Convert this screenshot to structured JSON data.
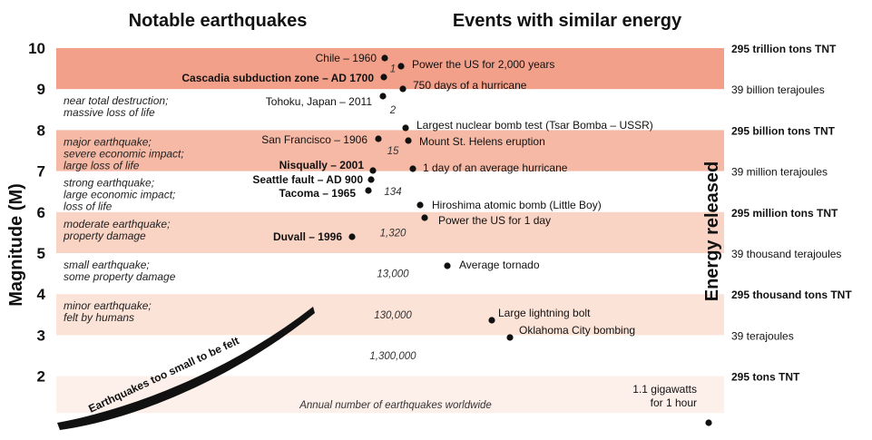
{
  "headers": {
    "left": "Notable earthquakes",
    "right": "Events with similar energy"
  },
  "axis": {
    "left_label": "Magnitude (M)",
    "right_label": "Energy released",
    "ticks": [
      "10",
      "9",
      "8",
      "7",
      "6",
      "5",
      "4",
      "3",
      "2"
    ]
  },
  "bands": [
    {
      "from": 9,
      "to": 10,
      "color": "#f2a08a"
    },
    {
      "from": 7,
      "to": 8,
      "color": "#f6b9a5"
    },
    {
      "from": 5,
      "to": 6,
      "color": "#f9d3c4"
    },
    {
      "from": 3,
      "to": 4,
      "color": "#fce3d8"
    },
    {
      "from": 1.1,
      "to": 2,
      "color": "#fdf0ea"
    }
  ],
  "descriptions": [
    {
      "lines": [
        "near total destruction;",
        "massive loss of life"
      ]
    },
    {
      "lines": [
        "major earthquake;",
        "severe economic impact;",
        "large loss of life"
      ]
    },
    {
      "lines": [
        "strong earthquake;",
        "large economic impact;",
        "loss of life"
      ]
    },
    {
      "lines": [
        "moderate earthquake;",
        "property damage"
      ]
    },
    {
      "lines": [
        "small earthquake;",
        "some property damage"
      ]
    },
    {
      "lines": [
        "minor earthquake;",
        "felt by humans"
      ]
    }
  ],
  "notable_quakes": [
    {
      "label": "Chile – 1960",
      "magnitude": 9.5,
      "bold": false
    },
    {
      "label": "Cascadia subduction zone – AD 1700",
      "magnitude": 9.0,
      "bold": true
    },
    {
      "label": "Tohoku, Japan – 2011",
      "magnitude": 9.0,
      "bold": false
    },
    {
      "label": "San Francisco – 1906",
      "magnitude": 7.9,
      "bold": false
    },
    {
      "label": "Nisqually – 2001",
      "magnitude": 6.8,
      "bold": true
    },
    {
      "label": "Seattle fault – AD 900",
      "magnitude": 7.5,
      "bold": true
    },
    {
      "label": "Tacoma – 1965",
      "magnitude": 6.7,
      "bold": true
    },
    {
      "label": "Duvall – 1996",
      "magnitude": 5.3,
      "bold": true
    }
  ],
  "similar_events": [
    {
      "label": "Power the US for 2,000 years",
      "magnitude": 9.6
    },
    {
      "label": "750 days of a hurricane",
      "magnitude": 9.0
    },
    {
      "label": "Largest nuclear bomb test (Tsar Bomba – USSR)",
      "magnitude": 8.1
    },
    {
      "label": "Mount St. Helens eruption",
      "magnitude": 7.8
    },
    {
      "label": "1 day of an average hurricane",
      "magnitude": 7.1
    },
    {
      "label": "Hiroshima atomic bomb (Little Boy)",
      "magnitude": 6.2
    },
    {
      "label": "Power the US for 1 day",
      "magnitude": 5.9
    },
    {
      "label": "Average tornado",
      "magnitude": 4.8
    },
    {
      "label": "Large lightning bolt",
      "magnitude": 3.6
    },
    {
      "label": "Oklahoma City bombing",
      "magnitude": 3.2
    },
    {
      "label": "1.1 gigawatts",
      "label2": "for 1 hour",
      "magnitude": 1.0
    }
  ],
  "energy_scale": [
    {
      "label": "295 trillion tons TNT",
      "bold": true
    },
    {
      "label": "39 billion terajoules",
      "bold": false
    },
    {
      "label": "295 billion tons TNT",
      "bold": true
    },
    {
      "label": "39 million terajoules",
      "bold": false
    },
    {
      "label": "295 million tons TNT",
      "bold": true
    },
    {
      "label": "39 thousand terajoules",
      "bold": false
    },
    {
      "label": "295 thousand tons TNT",
      "bold": true
    },
    {
      "label": "39 terajoules",
      "bold": false
    },
    {
      "label": "295 tons TNT",
      "bold": true
    }
  ],
  "annual_counts": [
    "1",
    "2",
    "15",
    "134",
    "1,320",
    "13,000",
    "130,000",
    "1,300,000"
  ],
  "funnel_caption": "Annual number of earthquakes worldwide",
  "too_small_label": "Earthquakes too small to be felt",
  "colors": {
    "funnel_top": "#ffffff",
    "funnel_bottom": "#5b7fc4",
    "dot": "#111111"
  }
}
